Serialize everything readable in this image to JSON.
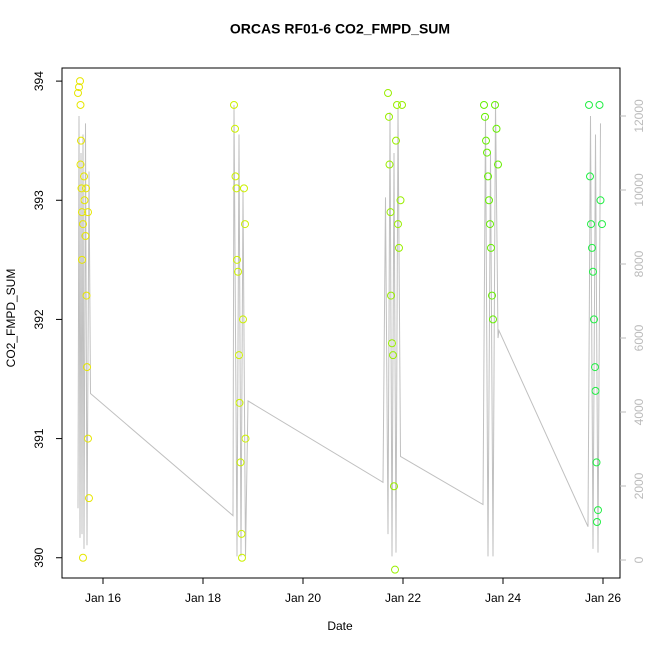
{
  "chart_data": {
    "type": "scatter",
    "title": "ORCAS RF01-6 CO2_FMPD_SUM",
    "xlabel": "Date",
    "ylabel": "CO2_FMPD_SUM",
    "xlim": [
      15.18,
      26.34
    ],
    "xticks": [
      {
        "value": 16,
        "label": "Jan 16"
      },
      {
        "value": 18,
        "label": "Jan 18"
      },
      {
        "value": 20,
        "label": "Jan 20"
      },
      {
        "value": 22,
        "label": "Jan 22"
      },
      {
        "value": 24,
        "label": "Jan 24"
      },
      {
        "value": 26,
        "label": "Jan 26"
      }
    ],
    "ylim": [
      389.83,
      394.11
    ],
    "yticks": [
      390,
      391,
      392,
      393,
      394
    ],
    "y2lim": [
      -486,
      13297
    ],
    "y2ticks": [
      0,
      2000,
      4000,
      6000,
      8000,
      10000,
      12000
    ],
    "series": [
      {
        "type": "line",
        "axis": "y2",
        "color": "#c0c0c0",
        "x": [
          15.5,
          15.52,
          15.54,
          15.56,
          15.58,
          15.6,
          15.62,
          15.65,
          15.68,
          15.72,
          15.75,
          18.6,
          18.62,
          18.68,
          18.72,
          18.76,
          18.8,
          18.85,
          18.9,
          21.6,
          21.65,
          21.7,
          21.74,
          21.78,
          21.82,
          21.86,
          21.9,
          21.95,
          23.6,
          23.65,
          23.7,
          23.75,
          23.8,
          23.85,
          23.9,
          23.92,
          25.7,
          25.75,
          25.8,
          25.85,
          25.9,
          25.95
        ],
        "values": [
          1400,
          12000,
          600,
          11000,
          700,
          11500,
          300,
          11800,
          400,
          10500,
          4500,
          1200,
          12300,
          100,
          11500,
          100,
          10000,
          100,
          4300,
          2100,
          9800,
          700,
          12100,
          100,
          11000,
          200,
          12200,
          2800,
          1500,
          12000,
          100,
          11000,
          100,
          12400,
          6000,
          6200,
          900,
          12000,
          300,
          11500,
          200,
          11800
        ]
      },
      {
        "color": "#e6e600",
        "x": [
          15.5,
          15.52,
          15.54,
          15.55,
          15.56,
          15.57,
          15.58,
          15.6,
          15.62,
          15.63,
          15.65,
          15.67,
          15.68,
          15.7,
          15.72,
          15.6,
          15.58,
          15.55,
          15.66,
          15.7
        ],
        "values": [
          393.9,
          393.95,
          394.0,
          393.8,
          393.5,
          393.1,
          392.9,
          392.8,
          393.2,
          393.0,
          392.7,
          392.2,
          391.6,
          391.0,
          390.5,
          390.0,
          392.5,
          393.3,
          393.1,
          392.9
        ]
      },
      {
        "color": "#ccf000",
        "x": [
          18.62,
          18.64,
          18.65,
          18.67,
          18.68,
          18.7,
          18.72,
          18.73,
          18.75,
          18.77,
          18.78,
          18.8,
          18.82,
          18.84,
          18.85
        ],
        "values": [
          393.8,
          393.6,
          393.2,
          393.1,
          392.5,
          392.4,
          391.7,
          391.3,
          390.8,
          390.2,
          390.0,
          392.0,
          393.1,
          392.8,
          391.0
        ]
      },
      {
        "color": "#99ee00",
        "x": [
          21.7,
          21.72,
          21.73,
          21.75,
          21.76,
          21.78,
          21.8,
          21.82,
          21.84,
          21.86,
          21.88,
          21.9,
          21.92,
          21.95,
          21.98
        ],
        "values": [
          393.9,
          393.7,
          393.3,
          392.9,
          392.2,
          391.8,
          391.7,
          390.6,
          389.9,
          393.5,
          393.8,
          392.8,
          392.6,
          393.0,
          393.8
        ]
      },
      {
        "color": "#66ee00",
        "x": [
          23.62,
          23.64,
          23.66,
          23.68,
          23.7,
          23.72,
          23.74,
          23.76,
          23.78,
          23.8,
          23.84,
          23.87,
          23.9
        ],
        "values": [
          393.8,
          393.7,
          393.5,
          393.4,
          393.2,
          393.0,
          392.8,
          392.6,
          392.2,
          392.0,
          393.8,
          393.6,
          393.3
        ]
      },
      {
        "color": "#22ee44",
        "x": [
          25.72,
          25.74,
          25.76,
          25.78,
          25.8,
          25.82,
          25.84,
          25.85,
          25.87,
          25.88,
          25.9,
          25.93,
          25.95,
          25.98
        ],
        "values": [
          393.8,
          393.2,
          392.8,
          392.6,
          392.4,
          392.0,
          391.6,
          391.4,
          390.8,
          390.3,
          390.4,
          393.8,
          393.0,
          392.8
        ]
      }
    ]
  }
}
